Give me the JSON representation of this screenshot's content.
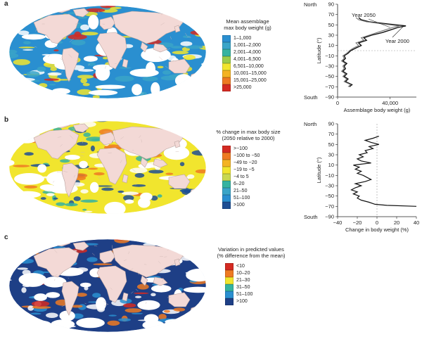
{
  "panels": [
    {
      "letter": "a",
      "legend": {
        "title_lines": [
          "Mean assemblage",
          "max body weight (g)"
        ],
        "items": [
          {
            "label": "1–1,000",
            "color": "#2a8fd0"
          },
          {
            "label": "1,001–2,000",
            "color": "#3aa5c8"
          },
          {
            "label": "2,001–4,000",
            "color": "#35b3a0"
          },
          {
            "label": "4,001–6,500",
            "color": "#9ccc4a"
          },
          {
            "label": "6,501–10,000",
            "color": "#f1e52e"
          },
          {
            "label": "10,001–15,000",
            "color": "#f4b323"
          },
          {
            "label": "15,001–25,000",
            "color": "#ee7a22"
          },
          {
            "label": ">25,000",
            "color": "#d42a22"
          }
        ]
      },
      "map_colors": {
        "ocean": "#2a8fd0",
        "secondary": "#3aa5c8",
        "accent": "#f1e52e",
        "hot": "#d42a22"
      }
    },
    {
      "letter": "b",
      "legend": {
        "title_lines": [
          "% change in max body size",
          "(2050 relative to 2000)"
        ],
        "items": [
          {
            "label": ">−100",
            "color": "#d42a22"
          },
          {
            "label": "−100 to −50",
            "color": "#ee7a22"
          },
          {
            "label": "−49 to −20",
            "color": "#f4b323"
          },
          {
            "label": "−19 to −5",
            "color": "#f1e52e"
          },
          {
            "label": "−4 to 5",
            "color": "#c8d850"
          },
          {
            "label": "6–20",
            "color": "#35b3a0"
          },
          {
            "label": "21–50",
            "color": "#3aa5c8"
          },
          {
            "label": "51–100",
            "color": "#2a8fd0"
          },
          {
            "label": ">100",
            "color": "#1e4f94"
          }
        ]
      },
      "map_colors": {
        "ocean": "#f1e52e",
        "secondary": "#1e4f94",
        "accent": "#35b3a0",
        "hot": "#ee7a22"
      }
    },
    {
      "letter": "c",
      "legend": {
        "title_lines": [
          "Variation in predicted values",
          "(% difference from the mean)"
        ],
        "items": [
          {
            "label": "<10",
            "color": "#d42a22"
          },
          {
            "label": "10–20",
            "color": "#ee7a22"
          },
          {
            "label": "21–30",
            "color": "#f1e52e"
          },
          {
            "label": "31–50",
            "color": "#35b3a0"
          },
          {
            "label": "51–100",
            "color": "#2a8fd0"
          },
          {
            "label": ">100",
            "color": "#1e3f86"
          }
        ]
      },
      "map_colors": {
        "ocean": "#1e3f86",
        "secondary": "#2a8fd0",
        "accent": "#ee7a22",
        "hot": "#d42a22"
      }
    }
  ],
  "land_color": "#f3d9d6",
  "profiles": [
    {
      "north_label": "North",
      "south_label": "South",
      "ylabel": "Latitude (°)",
      "xlabel": "Assemblage body weight (g)",
      "yticks": [
        "90",
        "70",
        "50",
        "30",
        "10",
        "−10",
        "−30",
        "−50",
        "−70",
        "−90"
      ],
      "xticks": [
        "0",
        "40,000"
      ],
      "annotations": [
        "Year 2050",
        "Year 2000"
      ],
      "chart_data": {
        "type": "line",
        "x_range": [
          0,
          60000
        ],
        "y_range": [
          -90,
          90
        ],
        "series": [
          {
            "name": "Year 2000",
            "points": [
              [
                9000,
                -70
              ],
              [
                11000,
                -66
              ],
              [
                6000,
                -60
              ],
              [
                8000,
                -55
              ],
              [
                5000,
                -50
              ],
              [
                7000,
                -45
              ],
              [
                4000,
                -40
              ],
              [
                6000,
                -35
              ],
              [
                5000,
                -30
              ],
              [
                7000,
                -25
              ],
              [
                4000,
                -20
              ],
              [
                6000,
                -15
              ],
              [
                5000,
                -10
              ],
              [
                8000,
                -5
              ],
              [
                10000,
                0
              ],
              [
                14000,
                5
              ],
              [
                18000,
                10
              ],
              [
                16000,
                15
              ],
              [
                22000,
                20
              ],
              [
                20000,
                25
              ],
              [
                26000,
                30
              ],
              [
                34000,
                35
              ],
              [
                40000,
                40
              ],
              [
                46000,
                45
              ],
              [
                52000,
                48
              ],
              [
                38000,
                52
              ],
              [
                24000,
                56
              ],
              [
                18000,
                60
              ],
              [
                16000,
                64
              ]
            ]
          },
          {
            "name": "Year 2050",
            "points": [
              [
                8000,
                -70
              ],
              [
                10000,
                -66
              ],
              [
                5000,
                -60
              ],
              [
                7000,
                -55
              ],
              [
                4000,
                -50
              ],
              [
                6000,
                -45
              ],
              [
                3000,
                -40
              ],
              [
                5000,
                -35
              ],
              [
                4000,
                -30
              ],
              [
                6000,
                -25
              ],
              [
                3000,
                -20
              ],
              [
                5000,
                -15
              ],
              [
                4000,
                -10
              ],
              [
                7000,
                -5
              ],
              [
                9000,
                0
              ],
              [
                12000,
                5
              ],
              [
                16000,
                10
              ],
              [
                14000,
                15
              ],
              [
                20000,
                20
              ],
              [
                18000,
                25
              ],
              [
                24000,
                30
              ],
              [
                30000,
                35
              ],
              [
                36000,
                40
              ],
              [
                42000,
                45
              ],
              [
                47000,
                48
              ],
              [
                34000,
                52
              ],
              [
                22000,
                56
              ],
              [
                16000,
                60
              ],
              [
                14000,
                64
              ]
            ]
          }
        ]
      }
    },
    {
      "north_label": "North",
      "south_label": "South",
      "ylabel": "Latitude (°)",
      "xlabel": "Change in body weight (%)",
      "yticks": [
        "90",
        "70",
        "50",
        "30",
        "10",
        "−10",
        "−30",
        "−50",
        "−70",
        "−90"
      ],
      "xticks": [
        "−40",
        "−20",
        "0",
        "20",
        "40"
      ],
      "chart_data": {
        "type": "line",
        "x_range": [
          -40,
          40
        ],
        "y_range": [
          -90,
          90
        ],
        "series": [
          {
            "points": [
              [
                40,
                -70
              ],
              [
                10,
                -68
              ],
              [
                -2,
                -66
              ],
              [
                -8,
                -62
              ],
              [
                -16,
                -58
              ],
              [
                -20,
                -54
              ],
              [
                -18,
                -50
              ],
              [
                -24,
                -46
              ],
              [
                -20,
                -42
              ],
              [
                -26,
                -38
              ],
              [
                -22,
                -34
              ],
              [
                -16,
                -30
              ],
              [
                -22,
                -26
              ],
              [
                -12,
                -22
              ],
              [
                -6,
                -18
              ],
              [
                -10,
                -14
              ],
              [
                -14,
                -10
              ],
              [
                -20,
                -6
              ],
              [
                -16,
                -2
              ],
              [
                -22,
                2
              ],
              [
                -18,
                6
              ],
              [
                -24,
                10
              ],
              [
                -6,
                14
              ],
              [
                -16,
                18
              ],
              [
                -20,
                22
              ],
              [
                -14,
                26
              ],
              [
                -18,
                30
              ],
              [
                -10,
                34
              ],
              [
                -12,
                38
              ],
              [
                -4,
                42
              ],
              [
                -8,
                46
              ],
              [
                2,
                50
              ],
              [
                -6,
                54
              ],
              [
                -12,
                58
              ],
              [
                -4,
                62
              ],
              [
                2,
                66
              ]
            ]
          }
        ]
      }
    }
  ]
}
